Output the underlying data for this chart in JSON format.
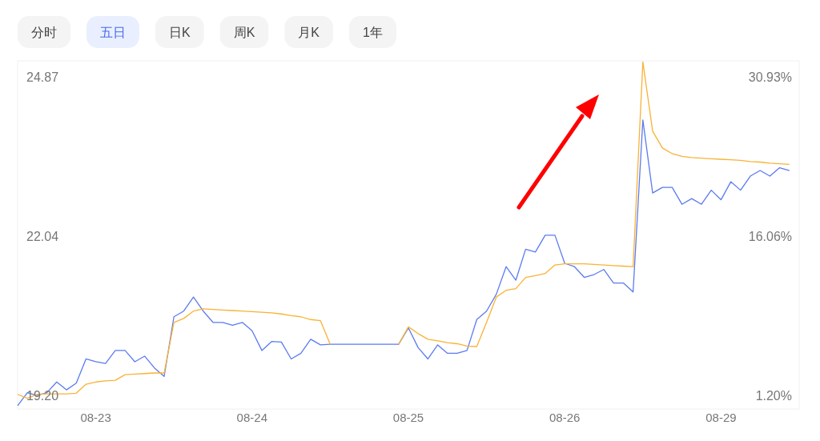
{
  "chart_data": {
    "type": "line",
    "annotations": [
      "分时",
      "五日",
      "日K",
      "周K",
      "月K",
      "1年"
    ],
    "categories": [
      null,
      null,
      null,
      null,
      null,
      null,
      null,
      null,
      "08-23",
      null,
      null,
      null,
      null,
      null,
      null,
      null,
      null,
      null,
      null,
      null,
      null,
      null,
      null,
      null,
      "08-24",
      null,
      null,
      null,
      null,
      null,
      null,
      null,
      null,
      null,
      null,
      null,
      null,
      null,
      null,
      null,
      "08-25",
      null,
      null,
      null,
      null,
      null,
      null,
      null,
      null,
      null,
      null,
      null,
      null,
      null,
      null,
      null,
      "08-26",
      null,
      null,
      null,
      null,
      null,
      null,
      null,
      null,
      null,
      null,
      null,
      null,
      null,
      null,
      null,
      "08-29",
      null,
      null,
      null,
      null,
      null,
      null,
      null
    ],
    "ylim": [
      18.96,
      25.15
    ],
    "yticks": [
      {
        "value": 19.2,
        "label": "19.20"
      },
      22.04,
      24.87
    ],
    "y2lim": [
      -0.07,
      32.42
    ],
    "y2ticks": [
      {
        "value": 1.2,
        "label": "1.20%"
      },
      {
        "value": 16.06,
        "label": "16.06%"
      },
      {
        "value": 30.93,
        "label": "30.93%"
      }
    ],
    "series": [
      {
        "color": "#5b7bf0",
        "values": [
          19.02,
          19.25,
          19.2,
          19.25,
          19.44,
          19.3,
          19.42,
          19.85,
          19.8,
          19.77,
          20.0,
          20.0,
          19.8,
          19.9,
          19.69,
          19.54,
          20.6,
          20.7,
          20.95,
          20.7,
          20.5,
          20.5,
          20.45,
          20.5,
          20.35,
          20.0,
          20.16,
          20.15,
          19.85,
          19.95,
          20.2,
          20.1,
          20.11,
          20.11,
          20.11,
          20.11,
          20.11,
          20.11,
          20.11,
          20.11,
          20.4,
          20.05,
          19.85,
          20.1,
          19.95,
          19.95,
          20.0,
          20.55,
          20.7,
          21.0,
          21.49,
          21.25,
          21.8,
          21.75,
          22.05,
          22.05,
          21.55,
          21.49,
          21.3,
          21.35,
          21.44,
          21.2,
          21.2,
          21.04,
          24.1,
          22.8,
          22.9,
          22.9,
          22.6,
          22.7,
          22.6,
          22.85,
          22.68,
          23.0,
          22.85,
          23.1,
          23.2,
          23.1,
          23.25,
          23.2
        ]
      },
      {
        "color": "#f9b234",
        "values": [
          19.22,
          19.15,
          19.22,
          19.23,
          19.23,
          19.23,
          19.24,
          19.4,
          19.44,
          19.46,
          19.47,
          19.57,
          19.58,
          19.59,
          19.6,
          19.6,
          20.5,
          20.57,
          20.7,
          20.74,
          20.73,
          20.72,
          20.71,
          20.7,
          20.69,
          20.68,
          20.67,
          20.65,
          20.62,
          20.6,
          20.55,
          20.53,
          20.11,
          null,
          null,
          null,
          null,
          null,
          null,
          20.11,
          20.42,
          20.3,
          20.2,
          20.17,
          20.14,
          20.12,
          20.08,
          20.07,
          20.5,
          20.95,
          21.07,
          21.1,
          21.3,
          21.33,
          21.37,
          21.52,
          21.54,
          21.54,
          21.54,
          21.53,
          21.52,
          21.51,
          21.5,
          21.49,
          25.13,
          23.9,
          23.6,
          23.5,
          23.45,
          23.43,
          23.42,
          23.41,
          23.4,
          23.39,
          23.38,
          23.36,
          23.35,
          23.33,
          23.32,
          23.31
        ]
      }
    ]
  }
}
